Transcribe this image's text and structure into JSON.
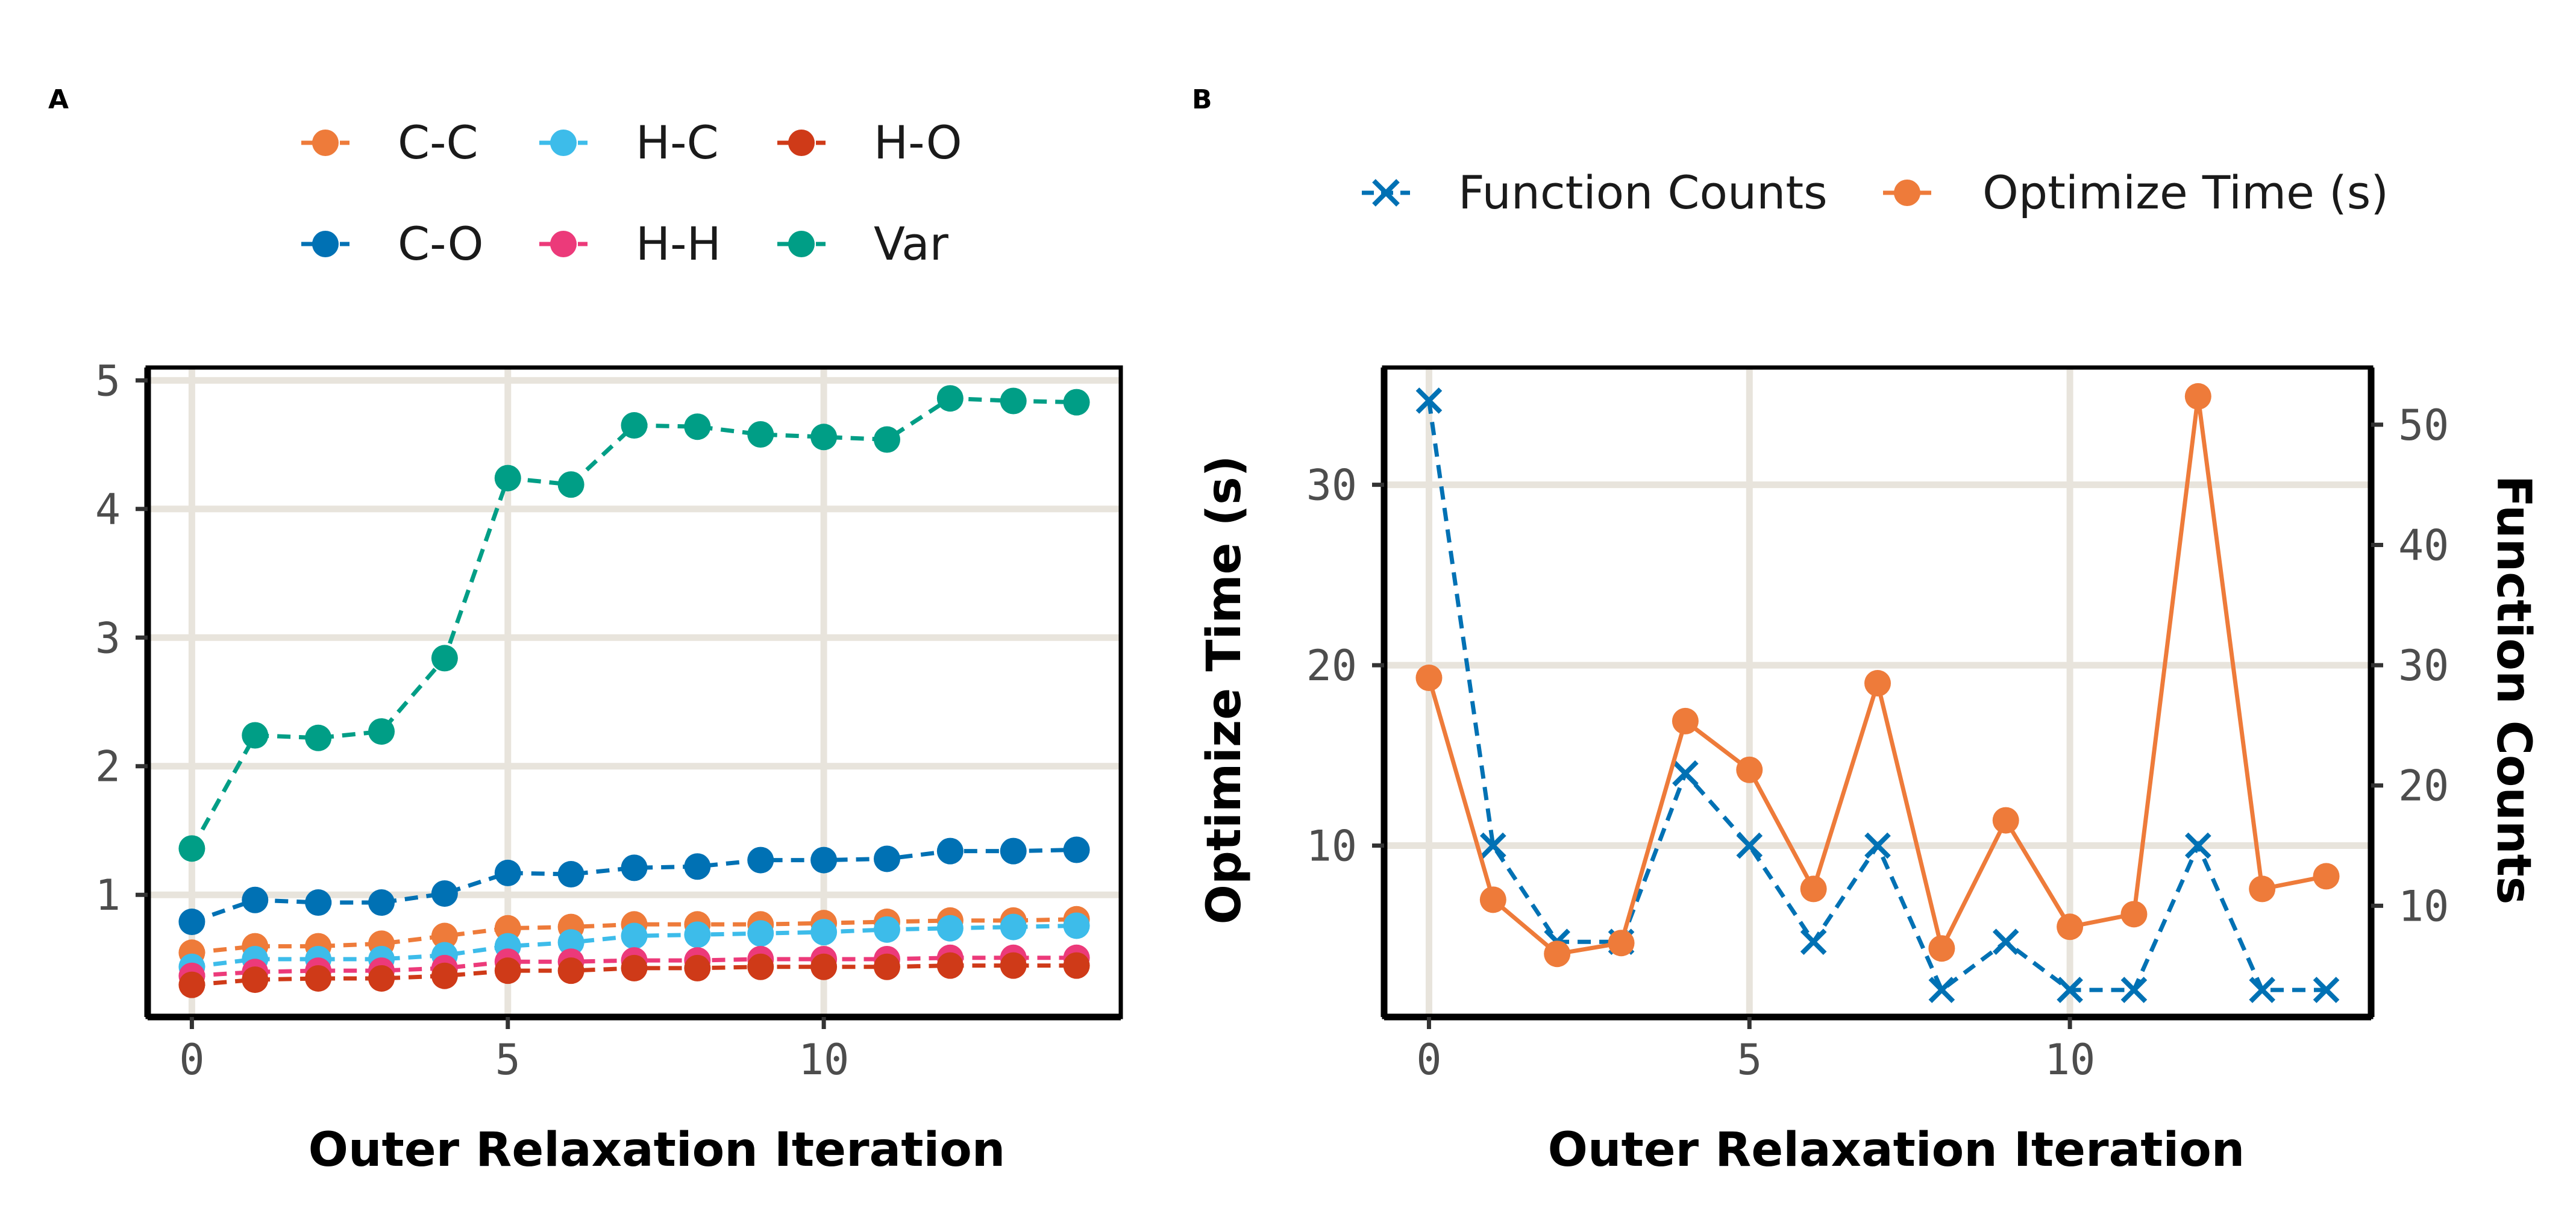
{
  "chart_data": [
    {
      "panel": "A",
      "type": "line",
      "xlabel": "Outer Relaxation Iteration",
      "ylabel": "",
      "xlim": [
        -0.7,
        14.7
      ],
      "ylim": [
        0.05,
        5.1
      ],
      "xticks": [
        0,
        5,
        10
      ],
      "yticks": [
        1,
        2,
        3,
        4,
        5
      ],
      "legend_position": "top",
      "x": [
        0,
        1,
        2,
        3,
        4,
        5,
        6,
        7,
        8,
        9,
        10,
        11,
        12,
        13,
        14
      ],
      "series": [
        {
          "name": "C-C",
          "color": "#ee7b3a",
          "marker": "circle",
          "values": [
            0.55,
            0.6,
            0.6,
            0.62,
            0.68,
            0.74,
            0.75,
            0.77,
            0.77,
            0.77,
            0.78,
            0.79,
            0.8,
            0.8,
            0.81
          ]
        },
        {
          "name": "C-O",
          "color": "#0071b4",
          "marker": "circle",
          "values": [
            0.79,
            0.96,
            0.94,
            0.94,
            1.01,
            1.17,
            1.16,
            1.21,
            1.22,
            1.27,
            1.27,
            1.28,
            1.34,
            1.34,
            1.35
          ]
        },
        {
          "name": "H-C",
          "color": "#3dbcea",
          "marker": "circle",
          "values": [
            0.44,
            0.5,
            0.5,
            0.5,
            0.53,
            0.6,
            0.63,
            0.68,
            0.69,
            0.7,
            0.71,
            0.73,
            0.74,
            0.75,
            0.76
          ]
        },
        {
          "name": "H-H",
          "color": "#ec3a7a",
          "marker": "circle",
          "values": [
            0.37,
            0.4,
            0.41,
            0.41,
            0.43,
            0.48,
            0.48,
            0.49,
            0.49,
            0.5,
            0.5,
            0.5,
            0.51,
            0.51,
            0.51
          ]
        },
        {
          "name": "H-O",
          "color": "#cf3a18",
          "marker": "circle",
          "values": [
            0.3,
            0.34,
            0.35,
            0.35,
            0.37,
            0.41,
            0.41,
            0.43,
            0.43,
            0.44,
            0.44,
            0.44,
            0.45,
            0.45,
            0.45
          ]
        },
        {
          "name": "Var",
          "color": "#009e86",
          "marker": "circle",
          "values": [
            1.36,
            2.24,
            2.22,
            2.27,
            2.84,
            4.24,
            4.19,
            4.65,
            4.64,
            4.58,
            4.56,
            4.54,
            4.86,
            4.84,
            4.83
          ]
        }
      ],
      "legend": [
        {
          "name": "C-C",
          "color": "#ee7b3a"
        },
        {
          "name": "H-C",
          "color": "#3dbcea"
        },
        {
          "name": "H-O",
          "color": "#cf3a18"
        },
        {
          "name": "C-O",
          "color": "#0071b4"
        },
        {
          "name": "H-H",
          "color": "#ec3a7a"
        },
        {
          "name": "Var",
          "color": "#009e86"
        }
      ]
    },
    {
      "panel": "B",
      "type": "line",
      "xlabel": "Outer Relaxation Iteration",
      "ylabel": "Optimize Time (s)",
      "ylabel_right": "Function Counts",
      "xlim": [
        -0.7,
        14.7
      ],
      "ylim": [
        0.5,
        36.5
      ],
      "ylim_right": [
        0.75,
        54.75
      ],
      "xticks": [
        0,
        5,
        10
      ],
      "yticks": [
        10,
        20,
        30
      ],
      "yticks_right": [
        10,
        20,
        30,
        40,
        50
      ],
      "legend_position": "top",
      "x": [
        0,
        1,
        2,
        3,
        4,
        5,
        6,
        7,
        8,
        9,
        10,
        11,
        12,
        13,
        14
      ],
      "series": [
        {
          "name": "Function Counts",
          "axis": "right",
          "color": "#0071b4",
          "marker": "x",
          "values": [
            52,
            15,
            7,
            7,
            21,
            15,
            7,
            15,
            3,
            7,
            3,
            3,
            15,
            3,
            3
          ]
        },
        {
          "name": "Optimize Time (s)",
          "axis": "left",
          "color": "#ee7b3a",
          "marker": "circle",
          "values": [
            19.3,
            7.0,
            4.0,
            4.6,
            16.9,
            14.2,
            7.6,
            19.0,
            4.3,
            11.4,
            5.5,
            6.2,
            34.9,
            7.6,
            8.3
          ]
        }
      ],
      "legend": [
        {
          "name": "Function Counts",
          "color": "#0071b4",
          "marker": "x"
        },
        {
          "name": "Optimize Time (s)",
          "color": "#ee7b3a",
          "marker": "circle"
        }
      ]
    }
  ]
}
